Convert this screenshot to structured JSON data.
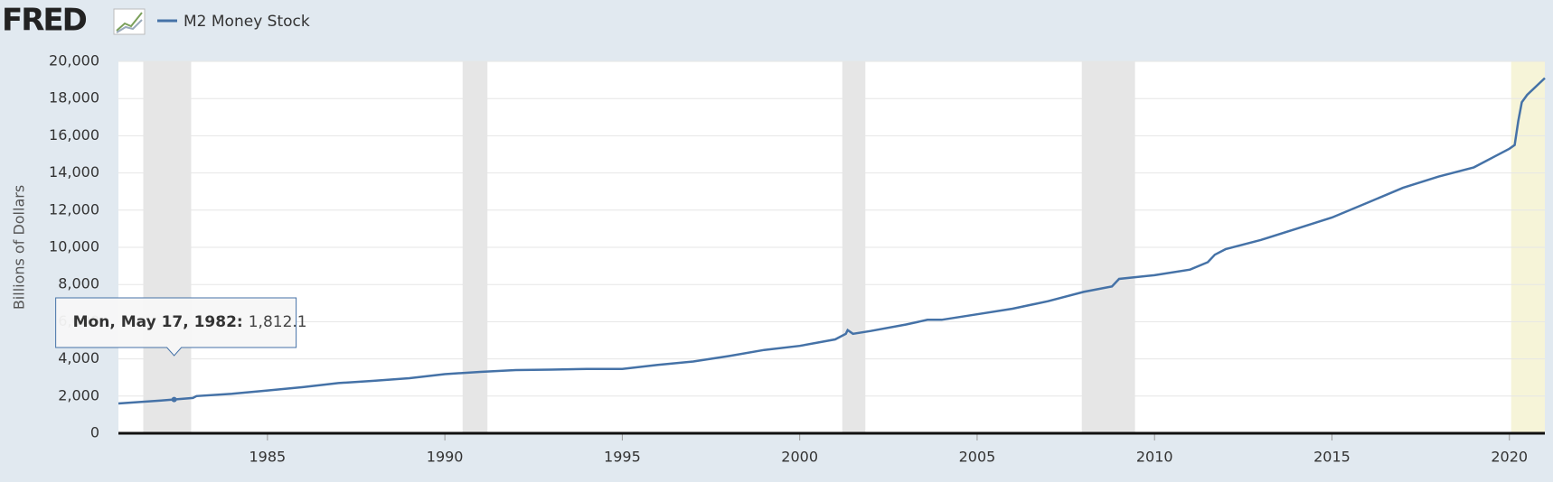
{
  "chart_data": {
    "type": "line",
    "logo": "FRED",
    "y_label": "Billions of Dollars",
    "series": [
      {
        "name": "M2 Money Stock",
        "color": "#4572a7",
        "x": [
          1980.8,
          1982.0,
          1982.9,
          1983.0,
          1984.0,
          1985.0,
          1986.0,
          1987.0,
          1988.0,
          1989.0,
          1990.0,
          1991.0,
          1992.0,
          1993.0,
          1994.0,
          1995.0,
          1996.0,
          1997.0,
          1998.0,
          1999.0,
          2000.0,
          2001.0,
          2001.3,
          2001.35,
          2001.5,
          2002.0,
          2003.0,
          2003.6,
          2004.0,
          2005.0,
          2006.0,
          2007.0,
          2008.0,
          2008.8,
          2009.0,
          2010.0,
          2011.0,
          2011.5,
          2011.7,
          2012.0,
          2013.0,
          2014.0,
          2015.0,
          2016.0,
          2017.0,
          2018.0,
          2019.0,
          2020.0,
          2020.15,
          2020.25,
          2020.35,
          2020.5,
          2021.0
        ],
        "values": [
          1600,
          1760,
          1900,
          2000,
          2120,
          2300,
          2480,
          2700,
          2820,
          2960,
          3180,
          3300,
          3400,
          3420,
          3460,
          3460,
          3680,
          3860,
          4150,
          4480,
          4700,
          5050,
          5350,
          5550,
          5350,
          5500,
          5850,
          6100,
          6100,
          6400,
          6700,
          7100,
          7600,
          7900,
          8300,
          8500,
          8800,
          9200,
          9600,
          9900,
          10400,
          11000,
          11600,
          12400,
          13200,
          13800,
          14300,
          15300,
          15500,
          16800,
          17800,
          18200,
          19100
        ]
      }
    ],
    "recessions": [
      [
        1981.5,
        1982.85
      ],
      [
        1990.5,
        1991.2
      ],
      [
        2001.2,
        2001.85
      ],
      [
        2007.95,
        2009.45
      ]
    ],
    "highlight": [
      2020.05,
      2021.0
    ],
    "xlim": [
      1980.8,
      2021.0
    ],
    "xticks": [
      1985,
      1990,
      1995,
      2000,
      2005,
      2010,
      2015,
      2020
    ],
    "ylim": [
      0,
      20000
    ],
    "yticks": [
      0,
      {
        "value": 2000,
        "label": "2,000"
      },
      {
        "value": 4000,
        "label": "4,000"
      },
      {
        "value": 6000,
        "label": "6,000"
      },
      {
        "value": 8000,
        "label": "8,000"
      },
      {
        "value": 10000,
        "label": "10,000"
      },
      {
        "value": 12000,
        "label": "12,000"
      },
      {
        "value": 14000,
        "label": "14,000"
      },
      {
        "value": 16000,
        "label": "16,000"
      },
      {
        "value": 18000,
        "label": "18,000"
      },
      {
        "value": 20000,
        "label": "20,000"
      }
    ],
    "grid": true,
    "tooltip": {
      "date": "Mon, May 17, 1982:",
      "x": 1982.37,
      "value": 1812.1,
      "value_label": "1,812.1"
    }
  }
}
